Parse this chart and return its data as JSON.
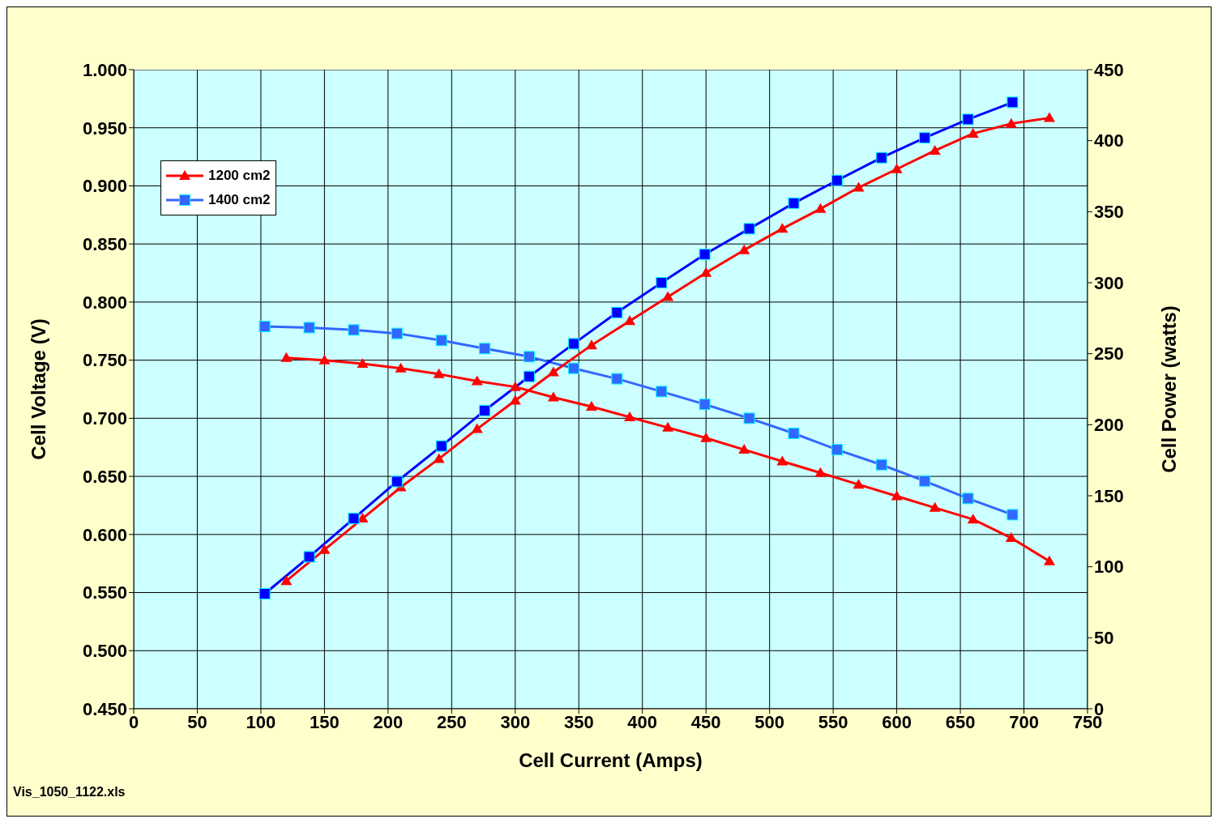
{
  "chart_data": {
    "type": "line",
    "xlabel": "Cell  Current  (Amps)",
    "ylabel": "Cell  Voltage  (V)",
    "y2label": "Cell  Power  (watts)",
    "xlim": [
      0,
      750
    ],
    "xticks": [
      0,
      50,
      100,
      150,
      200,
      250,
      300,
      350,
      400,
      450,
      500,
      550,
      600,
      650,
      700,
      750
    ],
    "ylim": [
      0.45,
      1.0
    ],
    "yticks": [
      {
        "value": 0.45,
        "label": "0.450"
      },
      {
        "value": 0.5,
        "label": "0.500"
      },
      {
        "value": 0.55,
        "label": "0.550"
      },
      {
        "value": 0.6,
        "label": "0.600"
      },
      {
        "value": 0.65,
        "label": "0.650"
      },
      {
        "value": 0.7,
        "label": "0.700"
      },
      {
        "value": 0.75,
        "label": "0.750"
      },
      {
        "value": 0.8,
        "label": "0.800"
      },
      {
        "value": 0.85,
        "label": "0.850"
      },
      {
        "value": 0.9,
        "label": "0.900"
      },
      {
        "value": 0.95,
        "label": "0.950"
      },
      {
        "value": 1.0,
        "label": "1.000"
      }
    ],
    "y2lim": [
      0,
      450
    ],
    "y2ticks": [
      0,
      50,
      100,
      150,
      200,
      250,
      300,
      350,
      400,
      450
    ],
    "grid": true,
    "legend": "top left",
    "annotations": [
      "Vis_1050_1122.xls"
    ],
    "series": [
      {
        "name": "1200 cm2",
        "color": "#ff0000",
        "marker": "triangle",
        "x": [
          120,
          150,
          180,
          210,
          240,
          270,
          300,
          330,
          360,
          390,
          420,
          450,
          480,
          510,
          540,
          570,
          600,
          630,
          660,
          690,
          720
        ],
        "values": [
          0.752,
          0.75,
          0.747,
          0.743,
          0.738,
          0.732,
          0.727,
          0.718,
          0.71,
          0.701,
          0.692,
          0.683,
          0.673,
          0.663,
          0.653,
          0.643,
          0.633,
          0.623,
          0.613,
          0.597,
          0.577
        ]
      },
      {
        "name": "1400 cm2",
        "color": "#3366ff",
        "marker": "square",
        "x": [
          103,
          138,
          173,
          207,
          242,
          276,
          311,
          346,
          380,
          415,
          449,
          484,
          519,
          553,
          588,
          622,
          656,
          691
        ],
        "values": [
          0.779,
          0.778,
          0.776,
          0.773,
          0.767,
          0.76,
          0.753,
          0.743,
          0.734,
          0.723,
          0.712,
          0.7,
          0.687,
          0.673,
          0.66,
          0.646,
          0.631,
          0.617
        ]
      },
      {
        "color": "#ff0000",
        "marker": "triangle",
        "axis": "y2",
        "x": [
          120,
          150,
          180,
          210,
          240,
          270,
          300,
          330,
          360,
          390,
          420,
          450,
          480,
          510,
          540,
          570,
          600,
          630,
          660,
          690,
          720
        ],
        "values": [
          90,
          112,
          134,
          156,
          176,
          197,
          217,
          237,
          256,
          273,
          290,
          307,
          323,
          338,
          352,
          367,
          380,
          393,
          405,
          412,
          416
        ]
      },
      {
        "color": "#0000ff",
        "marker": "square",
        "axis": "y2",
        "x": [
          103,
          138,
          173,
          207,
          242,
          276,
          311,
          346,
          380,
          415,
          449,
          484,
          519,
          553,
          588,
          622,
          656,
          691
        ],
        "values": [
          81,
          107,
          134,
          160,
          185,
          210,
          234,
          257,
          279,
          300,
          320,
          338,
          356,
          372,
          388,
          402,
          415,
          427
        ]
      }
    ]
  }
}
